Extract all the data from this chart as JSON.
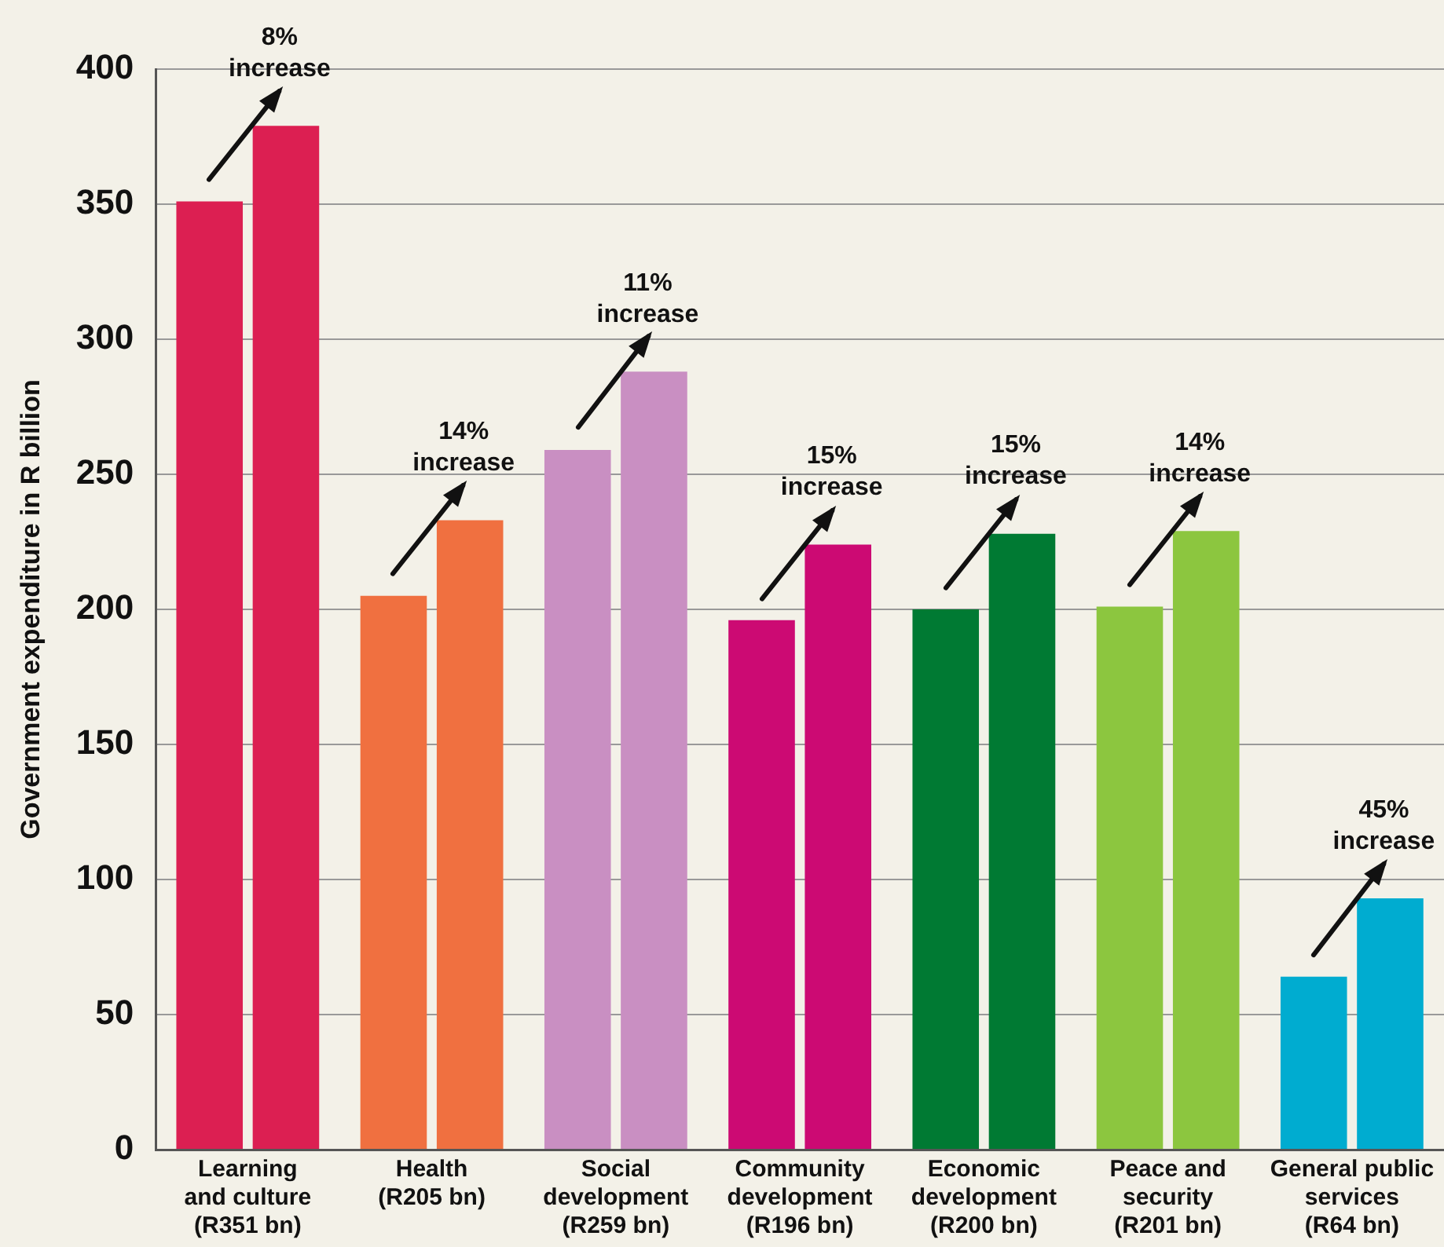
{
  "chart_data": {
    "type": "bar",
    "ylabel": "Government expenditure in R billion",
    "categories": [
      "Learning\nand culture\n(R351 bn)",
      "Health\n(R205 bn)",
      "Social\ndevelopment\n(R259 bn)",
      "Community\ndevelopment\n(R196 bn)",
      "Economic\ndevelopment\n(R200 bn)",
      "Peace and\nsecurity\n(R201 bn)",
      "General public\nservices\n(R64 bn)"
    ],
    "series": [
      {
        "colors": [
          "#dc1f52",
          "#f07040",
          "#c98fc2",
          "#cc0a73",
          "#007a33",
          "#8cc63f",
          "#00acd0"
        ],
        "values": [
          351,
          205,
          259,
          196,
          200,
          201,
          64
        ]
      },
      {
        "colors": [
          "#dc1f52",
          "#f07040",
          "#c98fc2",
          "#cc0a73",
          "#007a33",
          "#8cc63f",
          "#00acd0"
        ],
        "values": [
          379,
          233,
          288,
          224,
          228,
          229,
          93
        ]
      }
    ],
    "annotations": [
      {
        "text": "8%\nincrease",
        "x": "Learning\nand culture\n(R351 bn)",
        "y": 379
      },
      {
        "text": "14%\nincrease",
        "x": "Health\n(R205 bn)",
        "y": 233
      },
      {
        "text": "11%\nincrease",
        "x": "Social\ndevelopment\n(R259 bn)",
        "y": 288
      },
      {
        "text": "15%\nincrease",
        "x": "Community\ndevelopment\n(R196 bn)",
        "y": 224
      },
      {
        "text": "15%\nincrease",
        "x": "Economic\ndevelopment\n(R200 bn)",
        "y": 228
      },
      {
        "text": "14%\nincrease",
        "x": "Peace and\nsecurity\n(R201 bn)",
        "y": 229
      },
      {
        "text": "45%\nincrease",
        "x": "General public\nservices\n(R64 bn)",
        "y": 93
      }
    ],
    "ylim": [
      0,
      400
    ],
    "yticks": [
      0,
      50,
      100,
      150,
      200,
      250,
      300,
      350,
      400
    ],
    "grid": "y",
    "legend": false
  }
}
